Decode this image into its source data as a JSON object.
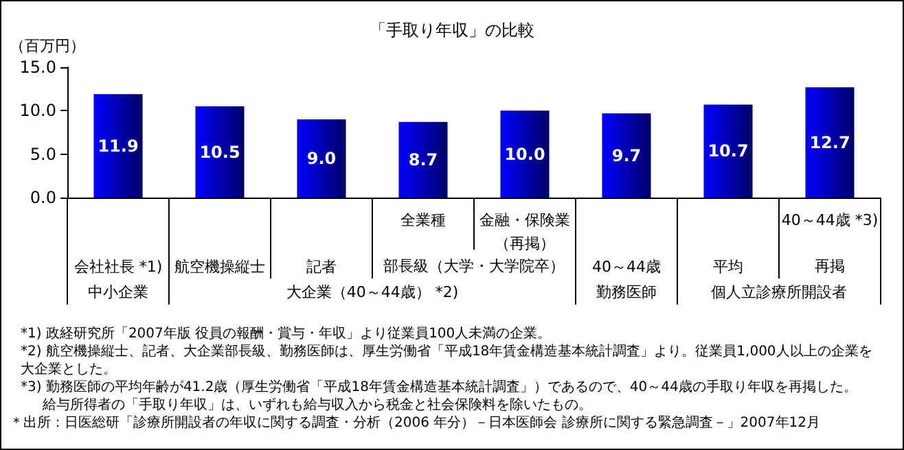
{
  "chart_data": {
    "type": "bar",
    "title": "「手取り年収」の比較",
    "ylabel": "（百万円）",
    "categories": [
      "会社社長 *1)",
      "航空機操縦士",
      "記者",
      "全業種",
      "金融・保険業（再掲）",
      "40～44歳",
      "平均",
      "40～44歳 *3)"
    ],
    "values": [
      11.9,
      10.5,
      9.0,
      8.7,
      10.0,
      9.7,
      10.7,
      12.7
    ],
    "value_labels": [
      "11.9",
      "10.5",
      "9.0",
      "8.7",
      "10.0",
      "9.7",
      "10.7",
      "12.7"
    ],
    "color": "#0000ff",
    "ylim": [
      0,
      15
    ],
    "yticks": [
      {
        "value": 0,
        "label": "0.0"
      },
      {
        "value": 5,
        "label": "5.0"
      },
      {
        "value": 10,
        "label": "10.0"
      },
      {
        "value": 15,
        "label": "15.0"
      }
    ],
    "grid": false,
    "annotations": [
      "部長級（大学・大学院卒）",
      "再掲",
      "中小企業",
      "大企業（40～44歳） *2)",
      "勤務医師",
      "個人立診療所開設者",
      "*1) 政経研究所「2007年版 役員の報酬・賞与・年収」より従業員100人未満の企業。",
      "*2) 航空機操縦士、記者、大企業部長級、勤務医師は、厚生労働省「平成18年賃金構造基本統計調査」より。従業員1,000人以上の企業を大企業とした。",
      "*3) 勤務医師の平均年齢が41.2歳（厚生労働省「平成18年賃金構造基本統計調査」）であるので、40～44歳の手取り年収を再掲した。",
      "給与所得者の「手取り年収」は、いずれも給与収入から税金と社会保険料を除いたもの。",
      "＊出所：日医総研「診療所開設者の年収に関する調査・分析（2006 年分）－日本医師会 診療所に関する緊急調査－」2007年12月"
    ]
  }
}
